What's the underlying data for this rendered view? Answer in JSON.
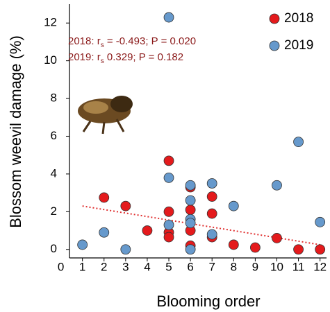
{
  "chart_data": {
    "type": "scatter",
    "x_label": "Blooming order",
    "y_label": "Blossom weevil damage (%)",
    "xlim": [
      0.4,
      12.3
    ],
    "ylim": [
      -0.45,
      13
    ],
    "xticks": [
      0,
      1,
      2,
      3,
      4,
      5,
      6,
      7,
      8,
      9,
      10,
      11,
      12
    ],
    "yticks": [
      0,
      2,
      4,
      6,
      8,
      10,
      12
    ],
    "annotations": [
      [
        "2018: r",
        "s",
        " = -0.493; P = 0.020"
      ],
      [
        "2019: r",
        "s",
        "  0.329; P = 0.182"
      ]
    ],
    "trendline": {
      "x": [
        1,
        12
      ],
      "y": [
        2.3,
        0.25
      ],
      "color": "#e03030"
    },
    "series": [
      {
        "name": "2018",
        "color": "#e41a1c",
        "x": [
          2,
          3,
          4,
          5,
          5,
          5,
          5,
          6,
          6,
          6,
          6,
          7,
          7,
          7,
          8,
          9,
          10,
          11,
          12
        ],
        "values": [
          2.75,
          2.3,
          1.0,
          4.7,
          2.0,
          0.9,
          0.65,
          3.3,
          2.1,
          1.0,
          0.2,
          2.8,
          1.9,
          0.65,
          0.25,
          0.1,
          0.6,
          0,
          0
        ]
      },
      {
        "name": "2019",
        "color": "#6699cc",
        "x": [
          1,
          2,
          3,
          5,
          5,
          5,
          6,
          6,
          6,
          6,
          6,
          7,
          7,
          8,
          10,
          11,
          12
        ],
        "values": [
          0.25,
          0.9,
          0,
          12.3,
          3.8,
          1.3,
          3.4,
          2.6,
          1.6,
          1.4,
          0,
          3.5,
          0.8,
          2.3,
          3.4,
          5.7,
          1.45
        ]
      }
    ]
  }
}
